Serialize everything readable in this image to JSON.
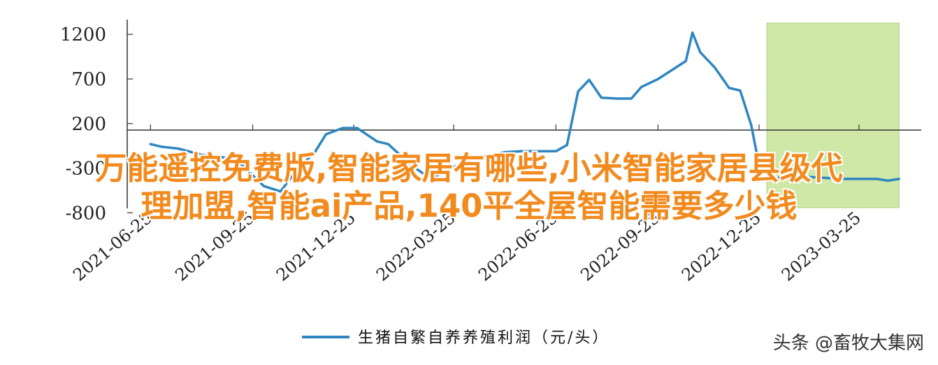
{
  "chart_data": {
    "type": "line",
    "xlabel": "",
    "ylabel": "",
    "ylim": [
      -750,
      1350
    ],
    "y_ticks": [
      "1200",
      "700",
      "200",
      "-300",
      "-800"
    ],
    "y_tick_values": [
      1200,
      700,
      200,
      -300,
      -800
    ],
    "x_tick_labels": [
      "2021-06-25",
      "2021-09-25",
      "2021-12-25",
      "2022-03-25",
      "2022-06-25",
      "2022-09-25",
      "2022-12-25",
      "2023-03-25"
    ],
    "grid": false,
    "highlight_region": {
      "from": "2023-01-01",
      "to": "2023-04-30",
      "color": "#cfe8a8"
    },
    "series": [
      {
        "name": "生猪自繁自养养殖利润（元/头）",
        "color": "#2e86c1",
        "x": [
          "2021-06-25",
          "2021-07-05",
          "2021-07-20",
          "2021-08-10",
          "2021-08-25",
          "2021-09-10",
          "2021-09-20",
          "2021-10-05",
          "2021-10-20",
          "2021-11-05",
          "2021-11-20",
          "2021-11-30",
          "2021-12-15",
          "2021-12-28",
          "2022-01-15",
          "2022-01-25",
          "2022-02-15",
          "2022-02-28",
          "2022-03-10",
          "2022-03-25",
          "2022-04-10",
          "2022-04-25",
          "2022-05-10",
          "2022-05-25",
          "2022-06-10",
          "2022-06-25",
          "2022-07-05",
          "2022-07-15",
          "2022-07-25",
          "2022-08-05",
          "2022-08-20",
          "2022-09-01",
          "2022-09-10",
          "2022-09-25",
          "2022-10-10",
          "2022-10-20",
          "2022-10-26",
          "2022-11-02",
          "2022-11-15",
          "2022-11-28",
          "2022-12-08",
          "2022-12-18",
          "2022-12-25",
          "2022-12-31",
          "2023-01-10",
          "2023-01-25",
          "2023-02-10",
          "2023-02-25",
          "2023-03-10",
          "2023-03-25",
          "2023-04-10",
          "2023-04-20",
          "2023-04-30"
        ],
        "y": [
          -30,
          -60,
          -80,
          -150,
          -170,
          -200,
          -320,
          -500,
          -560,
          -300,
          -120,
          80,
          150,
          150,
          0,
          -30,
          -270,
          -380,
          -380,
          -290,
          -180,
          -160,
          -120,
          -110,
          -110,
          -110,
          -40,
          560,
          690,
          490,
          480,
          480,
          610,
          700,
          820,
          900,
          1220,
          1000,
          830,
          600,
          570,
          180,
          -270,
          -290,
          -410,
          -390,
          -400,
          -410,
          -420,
          -420,
          -420,
          -440,
          -420
        ]
      }
    ]
  },
  "overlay": {
    "line1": "万能遥控免费版,智能家居有哪些,小米智能家居县级代",
    "line2": "理加盟,智能ai产品,140平全屋智能需要多少钱"
  },
  "legend": {
    "label": "生猪自繁自养养殖利润（元/头）"
  },
  "watermark": "头条 @畜牧大集网"
}
